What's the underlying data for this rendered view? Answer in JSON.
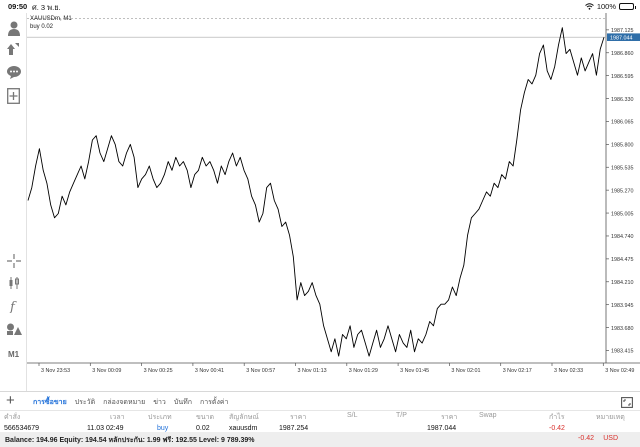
{
  "status_bar": {
    "time": "09:50",
    "date": "ศ. 3 พ.ย.",
    "battery": "100%"
  },
  "chart": {
    "title": "XAUUSDm, M1",
    "order_label": "buy 0.02",
    "bid_badge": "1987.044",
    "price_ticks": [
      "1987.125",
      "1986.860",
      "1986.595",
      "1986.330",
      "1986.065",
      "1985.800",
      "1985.535",
      "1985.270",
      "1985.005",
      "1984.740",
      "1984.475",
      "1984.210",
      "1983.945",
      "1983.680",
      "1983.415"
    ],
    "time_ticks": [
      "3 Nov 23:53",
      "3 Nov 00:09",
      "3 Nov 00:25",
      "3 Nov 00:41",
      "3 Nov 00:57",
      "3 Nov 01:13",
      "3 Nov 01:29",
      "3 Nov 01:45",
      "3 Nov 02:01",
      "3 Nov 02:17",
      "3 Nov 02:33",
      "3 Nov 02:49"
    ]
  },
  "chart_data": {
    "type": "line",
    "series": [
      {
        "values": [
          1985.15,
          1985.3,
          1985.55,
          1985.75,
          1985.5,
          1985.35,
          1985.1,
          1984.95,
          1985.0,
          1985.2,
          1985.1,
          1985.25,
          1985.35,
          1985.45,
          1985.55,
          1985.4,
          1985.6,
          1985.85,
          1985.9,
          1985.7,
          1985.6,
          1985.75,
          1985.9,
          1985.8,
          1985.6,
          1985.55,
          1985.7,
          1985.8,
          1985.65,
          1985.3,
          1985.4,
          1985.45,
          1985.55,
          1985.4,
          1985.3,
          1985.35,
          1985.45,
          1985.6,
          1985.5,
          1985.65,
          1985.55,
          1985.6,
          1985.5,
          1985.3,
          1985.45,
          1985.5,
          1985.65,
          1985.55,
          1985.6,
          1985.5,
          1985.35,
          1985.55,
          1985.45,
          1985.6,
          1985.7,
          1985.55,
          1985.65,
          1985.5,
          1985.4,
          1985.2,
          1985.1,
          1984.9,
          1985.0,
          1985.3,
          1985.35,
          1985.15,
          1985.05,
          1984.85,
          1984.9,
          1984.75,
          1984.5,
          1984.0,
          1984.2,
          1984.05,
          1984.1,
          1984.2,
          1984.05,
          1983.95,
          1983.7,
          1983.55,
          1983.4,
          1983.55,
          1983.35,
          1983.6,
          1983.55,
          1983.7,
          1983.45,
          1983.6,
          1983.65,
          1983.5,
          1983.35,
          1983.5,
          1983.65,
          1983.45,
          1983.55,
          1983.7,
          1983.55,
          1983.4,
          1983.6,
          1983.5,
          1983.45,
          1983.65,
          1983.4,
          1983.55,
          1983.5,
          1983.6,
          1983.75,
          1983.7,
          1983.9,
          1983.95,
          1983.95,
          1984.0,
          1984.15,
          1984.05,
          1984.25,
          1984.4,
          1984.75,
          1984.95,
          1985.0,
          1985.05,
          1985.15,
          1985.25,
          1985.2,
          1985.35,
          1985.3,
          1985.45,
          1985.4,
          1985.6,
          1985.55,
          1985.85,
          1986.2,
          1986.4,
          1986.55,
          1986.5,
          1986.6,
          1986.85,
          1986.95,
          1986.65,
          1986.55,
          1986.7,
          1986.95,
          1987.15,
          1986.85,
          1986.9,
          1986.75,
          1986.6,
          1986.8,
          1986.65,
          1986.75,
          1986.85,
          1986.6,
          1986.9,
          1987.04
        ]
      }
    ],
    "ylim": [
      1983.27,
      1987.32
    ],
    "xlim": [
      "3 Nov 23:53",
      "3 Nov 02:49"
    ],
    "grid": false,
    "reference_lines": [
      {
        "label": "buy 0.02",
        "value": 1987.254,
        "style": "dashed"
      }
    ]
  },
  "trade_tabs": [
    "การซื้อขาย",
    "ประวัติ",
    "กล่องจดหมาย",
    "ข่าว",
    "บันทึก",
    "การตั้งค่า"
  ],
  "table": {
    "headers": {
      "order": "คำสั่ง",
      "time": "เวลา",
      "type": "ประเภท",
      "volume": "ขนาด",
      "symbol": "สัญลักษณ์",
      "price": "ราคา",
      "sl": "S/L",
      "tp": "T/P",
      "current_price": "ราคา",
      "swap": "Swap",
      "profit": "กำไร",
      "comment": "หมายเหตุ"
    },
    "row": {
      "order": "566534679",
      "time": "11.03 02:49",
      "type": "buy",
      "volume": "0.02",
      "symbol": "xauusdm",
      "price": "1987.254",
      "current_price": "1987.044",
      "profit": "-0.42"
    }
  },
  "balance": {
    "text": "Balance: 194.96 Equity: 194.54 หลักประกัน: 1.99 ฟรี: 192.55 Level: 9 789.39%",
    "profit": "-0.42",
    "currency": "USD"
  },
  "colors": {
    "accent": "#1e6fd9",
    "loss": "#d9302c",
    "bid_badge": "#2f6ea8"
  }
}
